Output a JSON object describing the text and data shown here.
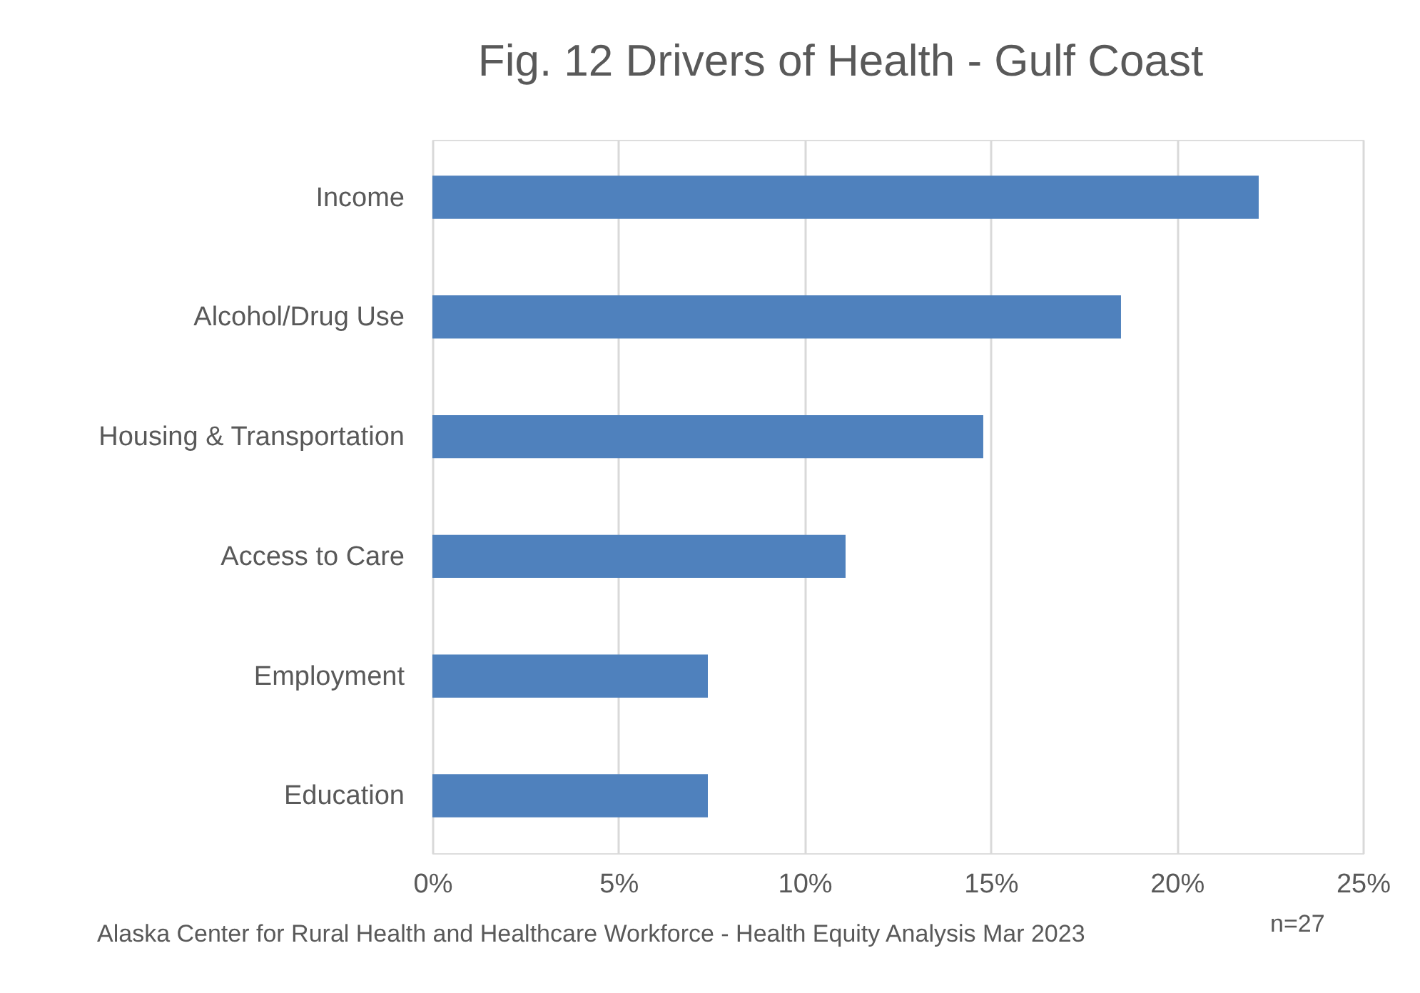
{
  "chart_data": {
    "type": "bar",
    "orientation": "horizontal",
    "title": "Fig. 12 Drivers of Health - Gulf Coast",
    "categories": [
      "Income",
      "Alcohol/Drug Use",
      "Housing & Transportation",
      "Access to Care",
      "Employment",
      "Education"
    ],
    "values": [
      22.2,
      18.5,
      14.8,
      11.1,
      7.4,
      7.4
    ],
    "color": "#4f81bd",
    "xlim": [
      0,
      25
    ],
    "xticks": [
      {
        "value": 0,
        "label": "0%"
      },
      {
        "value": 5,
        "label": "5%"
      },
      {
        "value": 10,
        "label": "10%"
      },
      {
        "value": 15,
        "label": "15%"
      },
      {
        "value": 20,
        "label": "20%"
      },
      {
        "value": 25,
        "label": "25%"
      }
    ],
    "grid": "x",
    "annotations": [
      "Alaska Center for Rural Health and Healthcare Workforce - Health  Equity Analysis Mar 2023",
      "n=27"
    ]
  }
}
